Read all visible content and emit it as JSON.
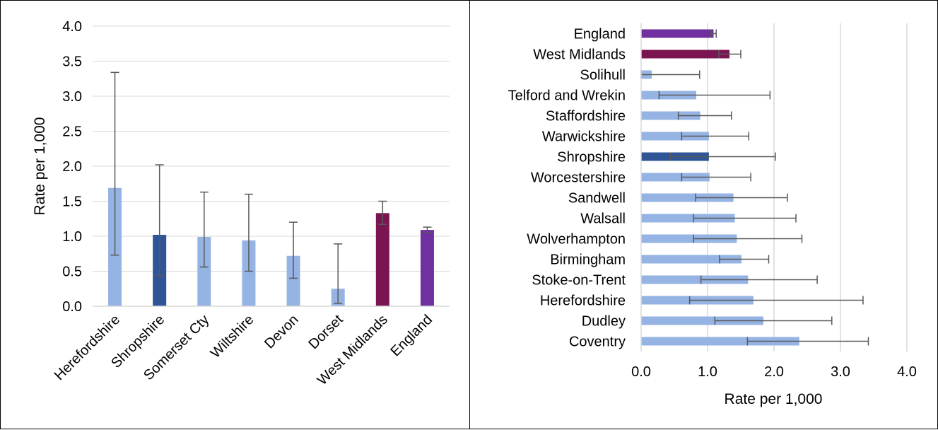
{
  "colors": {
    "light_blue": "#95b3e3",
    "dark_blue": "#2f5597",
    "maroon": "#7b1551",
    "purple": "#7030a0",
    "grid": "#d9d9d9",
    "error_bar": "#595959"
  },
  "chart_data": [
    {
      "type": "bar",
      "orientation": "vertical",
      "ylabel": "Rate per 1,000",
      "ylim": [
        0,
        4
      ],
      "yticks": [
        "0.0",
        "0.5",
        "1.0",
        "1.5",
        "2.0",
        "2.5",
        "3.0",
        "3.5",
        "4.0"
      ],
      "grid": true,
      "categories": [
        "Herefordshire",
        "Shropshire",
        "Somerset Cty",
        "Wiltshire",
        "Devon",
        "Dorset",
        "West Midlands",
        "England"
      ],
      "values": [
        1.69,
        1.02,
        0.99,
        0.94,
        0.72,
        0.25,
        1.33,
        1.09
      ],
      "error_low": [
        0.73,
        0.44,
        0.56,
        0.5,
        0.4,
        0.04,
        1.17,
        1.05
      ],
      "error_high": [
        3.34,
        2.02,
        1.63,
        1.6,
        1.2,
        0.89,
        1.5,
        1.13
      ],
      "bar_colors": [
        "light_blue",
        "dark_blue",
        "light_blue",
        "light_blue",
        "light_blue",
        "light_blue",
        "maroon",
        "purple"
      ]
    },
    {
      "type": "bar",
      "orientation": "horizontal",
      "xlabel": "Rate per 1,000",
      "xlim": [
        0,
        4
      ],
      "xticks": [
        "0.0",
        "1.0",
        "2.0",
        "3.0",
        "4.0"
      ],
      "grid": true,
      "categories": [
        "England",
        "West Midlands",
        "Solihull",
        "Telford and Wrekin",
        "Staffordshire",
        "Warwickshire",
        "Shropshire",
        "Worcestershire",
        "Sandwell",
        "Walsall",
        "Wolverhampton",
        "Birmingham",
        "Stoke-on-Trent",
        "Herefordshire",
        "Dudley",
        "Coventry"
      ],
      "values": [
        1.09,
        1.33,
        0.16,
        0.83,
        0.89,
        1.02,
        1.02,
        1.03,
        1.39,
        1.41,
        1.44,
        1.51,
        1.61,
        1.69,
        1.84,
        2.38
      ],
      "error_low": [
        1.05,
        1.17,
        0.0,
        0.27,
        0.56,
        0.61,
        0.44,
        0.61,
        0.82,
        0.79,
        0.79,
        1.18,
        0.9,
        0.73,
        1.11,
        1.6
      ],
      "error_high": [
        1.13,
        1.5,
        0.88,
        1.94,
        1.36,
        1.62,
        2.02,
        1.65,
        2.2,
        2.33,
        2.42,
        1.92,
        2.65,
        3.34,
        2.87,
        3.42
      ],
      "bar_colors": [
        "purple",
        "maroon",
        "light_blue",
        "light_blue",
        "light_blue",
        "light_blue",
        "dark_blue",
        "light_blue",
        "light_blue",
        "light_blue",
        "light_blue",
        "light_blue",
        "light_blue",
        "light_blue",
        "light_blue",
        "light_blue"
      ]
    }
  ]
}
